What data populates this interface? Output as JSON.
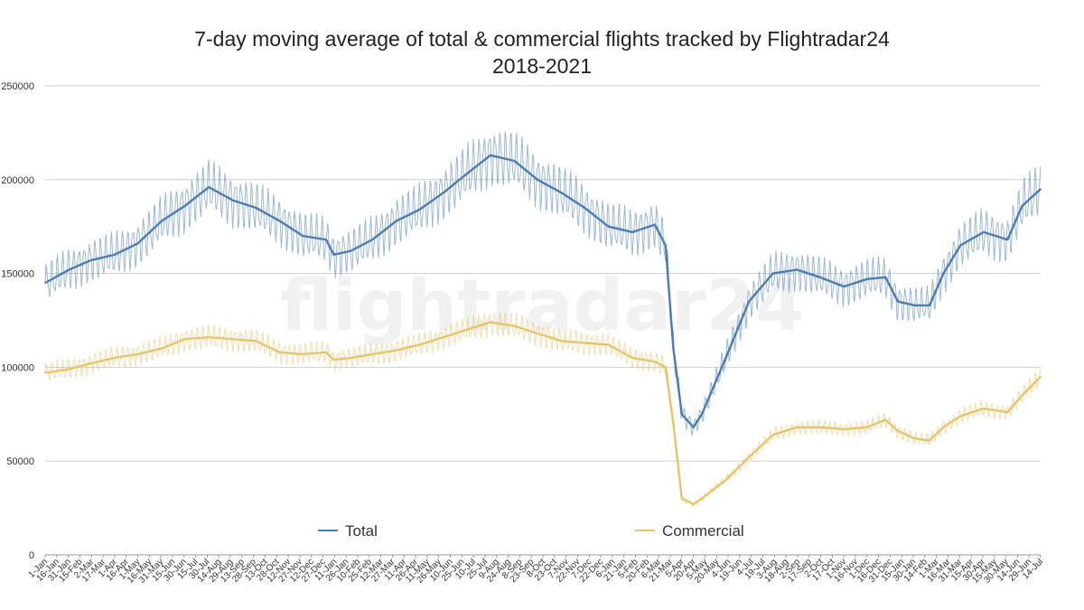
{
  "chart_data": {
    "type": "line",
    "title": "7-day moving average of total & commercial flights tracked by Flightradar24",
    "subtitle": "2018-2021",
    "xlabel": "",
    "ylabel": "",
    "ylim": [
      0,
      250000
    ],
    "yticks": [
      0,
      50000,
      100000,
      150000,
      200000,
      250000
    ],
    "x_range": [
      "2018-01-01",
      "2021-07-14"
    ],
    "x_tick_labels": [
      "1-Jan",
      "16-Jan",
      "31-Jan",
      "15-Feb",
      "2-Mar",
      "17-Mar",
      "1-Apr",
      "16-Apr",
      "1-May",
      "16-May",
      "31-May",
      "15-Jun",
      "30-Jun",
      "15-Jul",
      "30-Jul",
      "14-Aug",
      "29-Aug",
      "13-Sep",
      "28-Sep",
      "13-Oct",
      "28-Oct",
      "12-Nov",
      "27-Nov",
      "12-Dec",
      "27-Dec",
      "11-Jan",
      "26-Jan",
      "10-Feb",
      "25-Feb",
      "12-Mar",
      "27-Mar",
      "11-Apr",
      "26-Apr",
      "11-May",
      "26-May",
      "10-Jun",
      "25-Jun",
      "10-Jul",
      "25-Jul",
      "9-Aug",
      "24-Aug",
      "8-Sep",
      "23-Sep",
      "8-Oct",
      "23-Oct",
      "7-Nov",
      "22-Nov",
      "7-Dec",
      "22-Dec",
      "6-Jan",
      "21-Jan",
      "5-Feb",
      "20-Feb",
      "6-Mar",
      "21-Mar",
      "5-Apr",
      "20-Apr",
      "5-May",
      "20-May",
      "4-Jun",
      "19-Jun",
      "4-Jul",
      "19-Jul",
      "3-Aug",
      "18-Aug",
      "2-Sep",
      "17-Sep",
      "2-Oct",
      "17-Oct",
      "1-Nov",
      "16-Nov",
      "1-Dec",
      "16-Dec",
      "31-Dec",
      "15-Jan",
      "30-Jan",
      "14-Feb",
      "1-Mar",
      "16-Mar",
      "31-Mar",
      "15-Apr",
      "30-Apr",
      "15-May",
      "30-May",
      "14-Jun",
      "29-Jun",
      "14-Jul"
    ],
    "series": [
      {
        "name": "Total",
        "color": "#4a7cb5",
        "x": [
          "2018-01-01",
          "2018-02-01",
          "2018-03-01",
          "2018-04-01",
          "2018-05-01",
          "2018-06-01",
          "2018-07-01",
          "2018-08-01",
          "2018-09-01",
          "2018-10-01",
          "2018-11-01",
          "2018-12-01",
          "2018-12-31",
          "2019-01-10",
          "2019-02-01",
          "2019-03-01",
          "2019-04-01",
          "2019-05-01",
          "2019-06-01",
          "2019-07-01",
          "2019-08-01",
          "2019-09-01",
          "2019-10-01",
          "2019-11-01",
          "2019-12-01",
          "2020-01-01",
          "2020-02-01",
          "2020-03-01",
          "2020-03-15",
          "2020-03-25",
          "2020-04-05",
          "2020-04-20",
          "2020-05-01",
          "2020-06-01",
          "2020-07-01",
          "2020-08-01",
          "2020-09-01",
          "2020-10-01",
          "2020-11-01",
          "2020-12-01",
          "2020-12-25",
          "2021-01-10",
          "2021-02-01",
          "2021-02-20",
          "2021-03-10",
          "2021-04-01",
          "2021-05-01",
          "2021-06-01",
          "2021-06-20",
          "2021-07-14"
        ],
        "y": [
          145000,
          152000,
          157000,
          160000,
          166000,
          178000,
          186000,
          196000,
          189000,
          185000,
          178000,
          170000,
          168000,
          160000,
          162000,
          168000,
          178000,
          184000,
          193000,
          203000,
          213000,
          210000,
          200000,
          193000,
          185000,
          175000,
          172000,
          176000,
          165000,
          110000,
          75000,
          68000,
          75000,
          105000,
          135000,
          150000,
          152000,
          148000,
          143000,
          147000,
          148000,
          135000,
          133000,
          133000,
          150000,
          165000,
          172000,
          168000,
          186000,
          195000
        ]
      },
      {
        "name": "Commercial",
        "color": "#e8c36a",
        "x": [
          "2018-01-01",
          "2018-02-01",
          "2018-03-01",
          "2018-04-01",
          "2018-05-01",
          "2018-06-01",
          "2018-07-01",
          "2018-08-01",
          "2018-09-01",
          "2018-10-01",
          "2018-11-01",
          "2018-12-01",
          "2018-12-31",
          "2019-01-10",
          "2019-02-01",
          "2019-03-01",
          "2019-04-01",
          "2019-05-01",
          "2019-06-01",
          "2019-07-01",
          "2019-08-01",
          "2019-09-01",
          "2019-10-01",
          "2019-11-01",
          "2019-12-01",
          "2020-01-01",
          "2020-02-01",
          "2020-03-01",
          "2020-03-15",
          "2020-03-25",
          "2020-04-05",
          "2020-04-20",
          "2020-05-01",
          "2020-06-01",
          "2020-07-01",
          "2020-08-01",
          "2020-09-01",
          "2020-10-01",
          "2020-11-01",
          "2020-12-01",
          "2020-12-25",
          "2021-01-10",
          "2021-02-01",
          "2021-02-20",
          "2021-03-10",
          "2021-04-01",
          "2021-05-01",
          "2021-06-01",
          "2021-06-20",
          "2021-07-14"
        ],
        "y": [
          97000,
          99000,
          102000,
          105000,
          107000,
          110000,
          115000,
          116000,
          115000,
          114000,
          108000,
          107000,
          108000,
          104000,
          105000,
          107000,
          109000,
          112000,
          116000,
          120000,
          124000,
          122000,
          118000,
          114000,
          113000,
          112000,
          105000,
          103000,
          100000,
          70000,
          30000,
          27000,
          30000,
          40000,
          52000,
          64000,
          68000,
          68000,
          67000,
          68000,
          72000,
          66000,
          62000,
          61000,
          68000,
          74000,
          78000,
          76000,
          85000,
          95000
        ]
      }
    ],
    "legend": {
      "position": "bottom",
      "entries": [
        "Total",
        "Commercial"
      ]
    },
    "grid": "horizontal",
    "watermark": "flightradar24"
  }
}
